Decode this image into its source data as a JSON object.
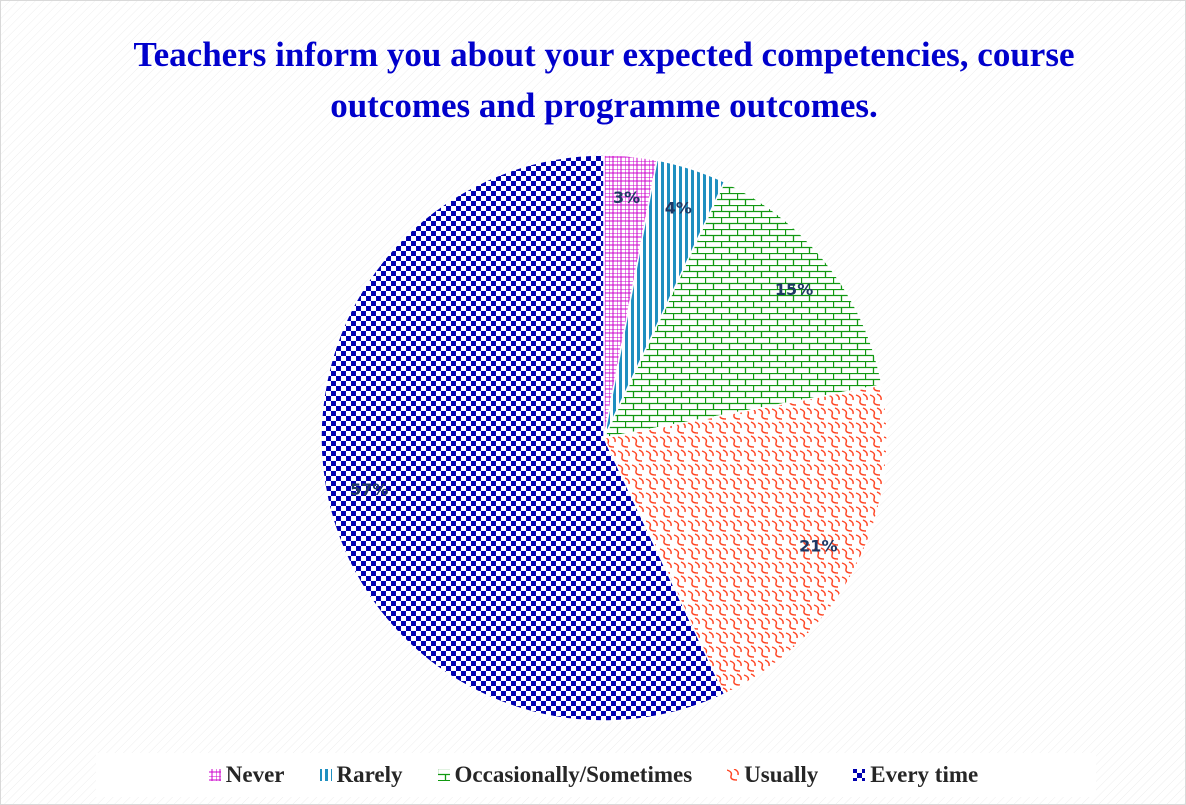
{
  "chart_data": {
    "type": "pie",
    "title": "Teachers inform you about your expected competencies, course outcomes and programme outcomes.",
    "categories": [
      "Never",
      "Rarely",
      "Occasionally/Sometimes",
      "Usually",
      "Every time"
    ],
    "values": [
      3,
      4,
      15,
      21,
      57
    ],
    "value_labels": [
      "3%",
      "4%",
      "15%",
      "21%",
      "57%"
    ],
    "colors": [
      "#cc00cc",
      "#1f8fc0",
      "#119911",
      "#ff4422",
      "#0000b0"
    ],
    "legend": "bottom"
  }
}
